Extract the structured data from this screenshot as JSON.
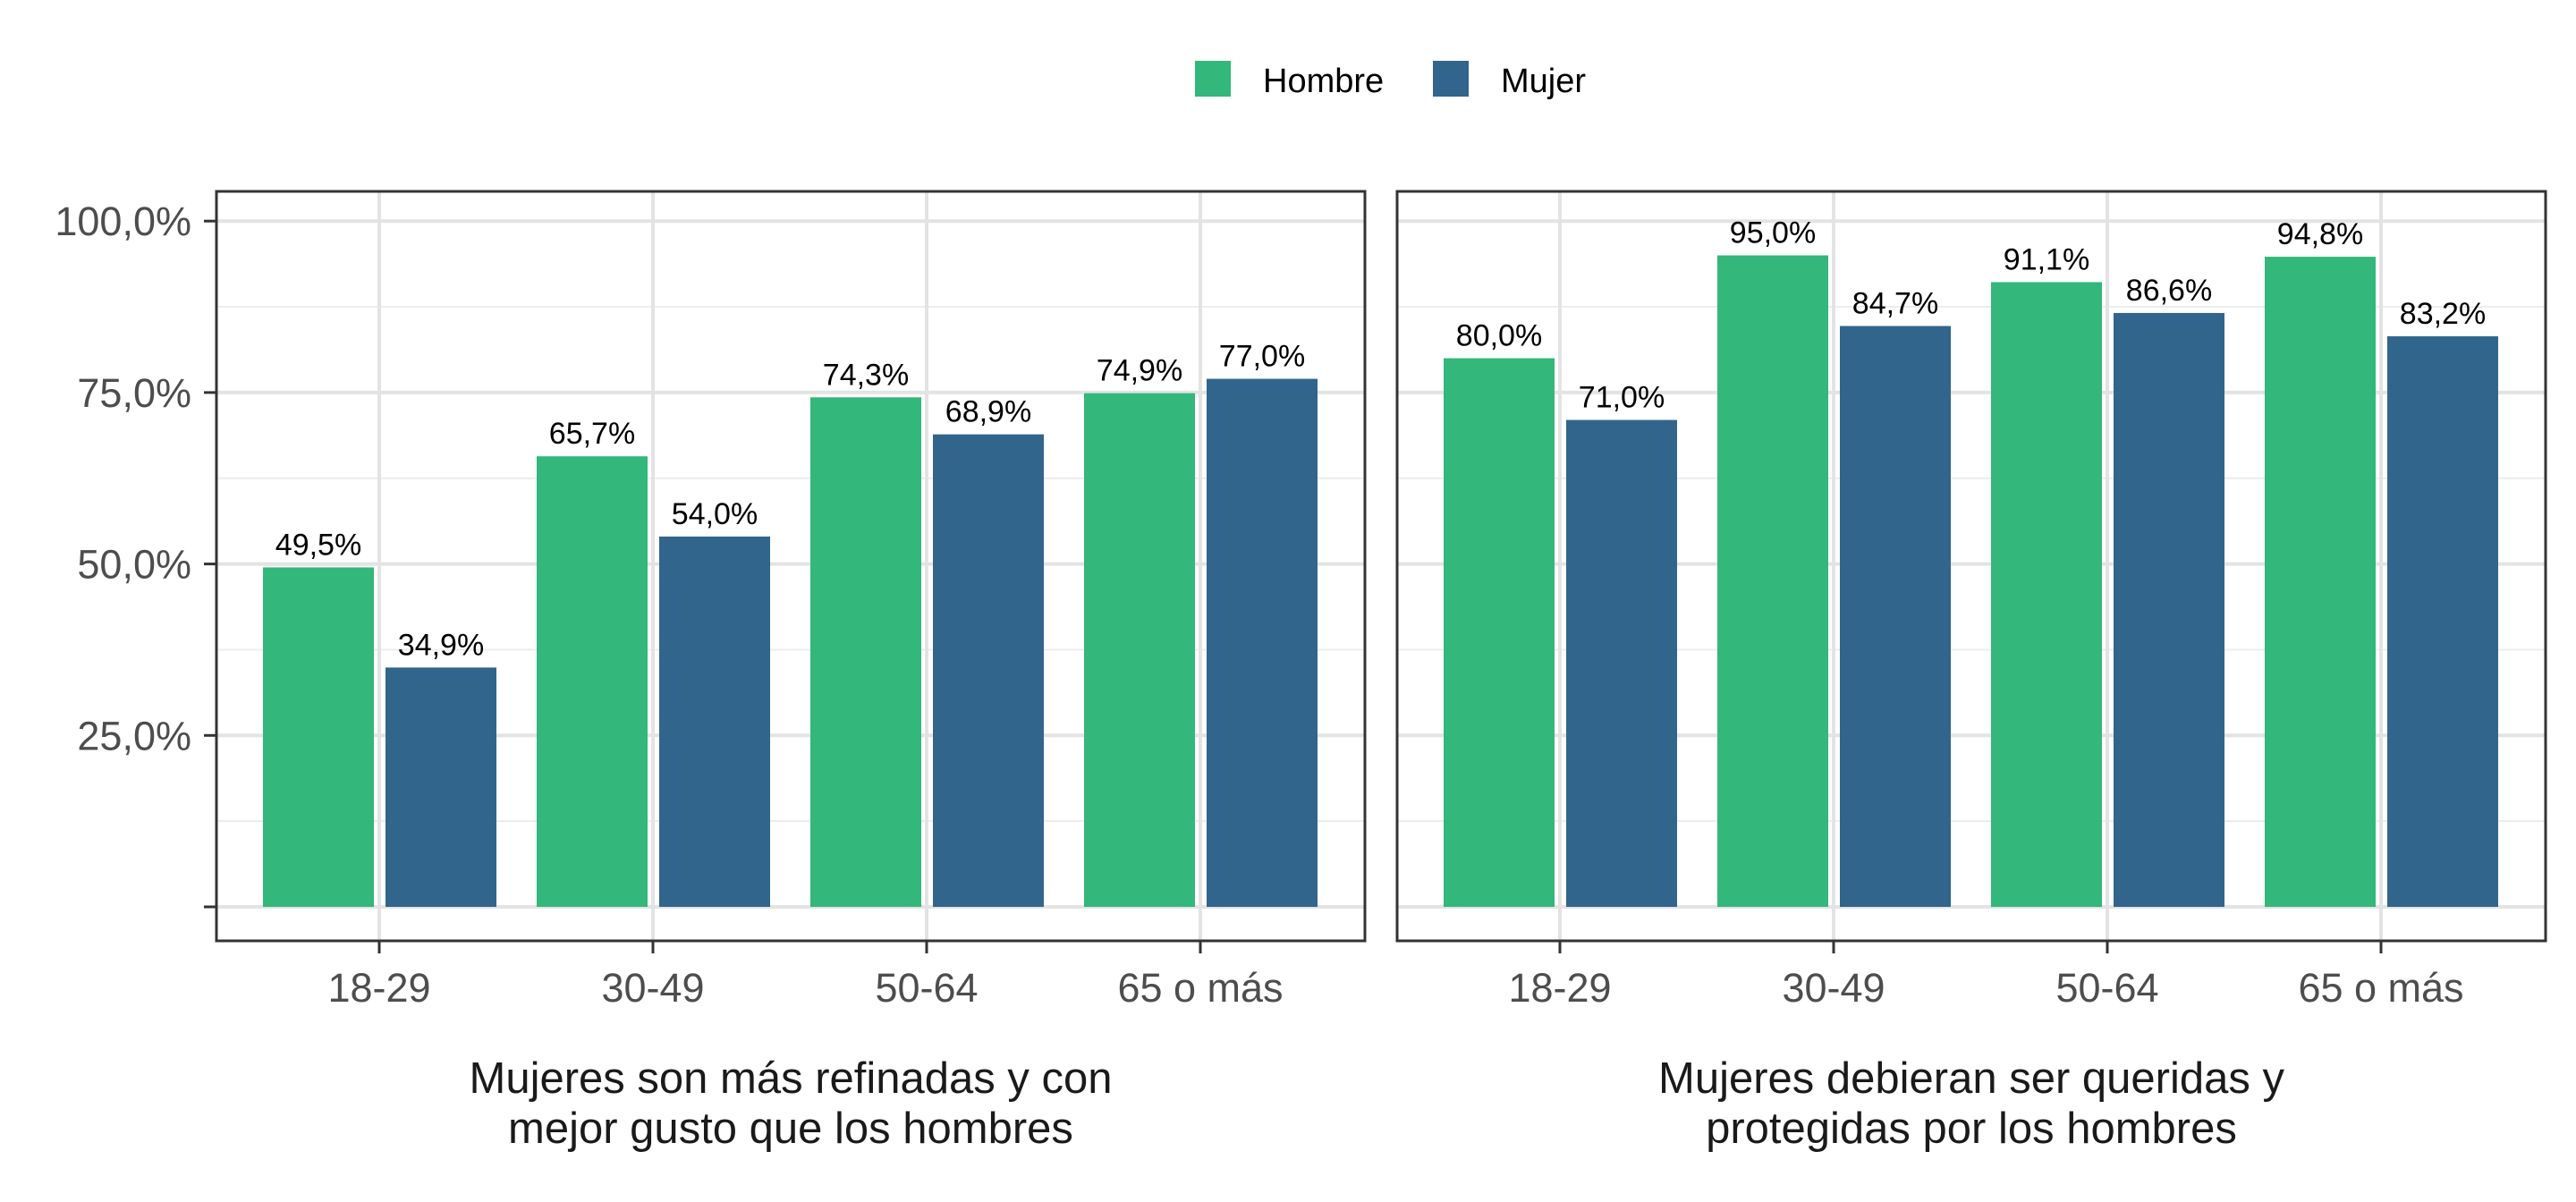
{
  "chart_data": {
    "type": "bar",
    "ylim": [
      0,
      100
    ],
    "y_ticks": [
      25,
      50,
      75,
      100
    ],
    "y_tick_labels": [
      "25,0%",
      "50,0%",
      "75,0%",
      "100,0%"
    ],
    "grid": true,
    "legend_position": "top",
    "legend": [
      {
        "name": "Hombre",
        "color": "#33b77a"
      },
      {
        "name": "Mujer",
        "color": "#31658c"
      }
    ],
    "categories": [
      "18-29",
      "30-49",
      "50-64",
      "65 o más"
    ],
    "panels": [
      {
        "xlabel_lines": [
          "Mujeres son más refinadas y con",
          "mejor gusto que los hombres"
        ],
        "series": [
          {
            "name": "Hombre",
            "values": [
              49.5,
              65.7,
              74.3,
              74.9
            ],
            "labels": [
              "49,5%",
              "65,7%",
              "74,3%",
              "74,9%"
            ]
          },
          {
            "name": "Mujer",
            "values": [
              34.9,
              54.0,
              68.9,
              77.0
            ],
            "labels": [
              "34,9%",
              "54,0%",
              "68,9%",
              "77,0%"
            ]
          }
        ]
      },
      {
        "xlabel_lines": [
          "Mujeres debieran ser queridas y",
          "protegidas por los hombres"
        ],
        "series": [
          {
            "name": "Hombre",
            "values": [
              80.0,
              95.0,
              91.1,
              94.8
            ],
            "labels": [
              "80,0%",
              "95,0%",
              "91,1%",
              "94,8%"
            ]
          },
          {
            "name": "Mujer",
            "values": [
              71.0,
              84.7,
              86.6,
              83.2
            ],
            "labels": [
              "71,0%",
              "84,7%",
              "86,6%",
              "83,2%"
            ]
          }
        ]
      }
    ]
  }
}
